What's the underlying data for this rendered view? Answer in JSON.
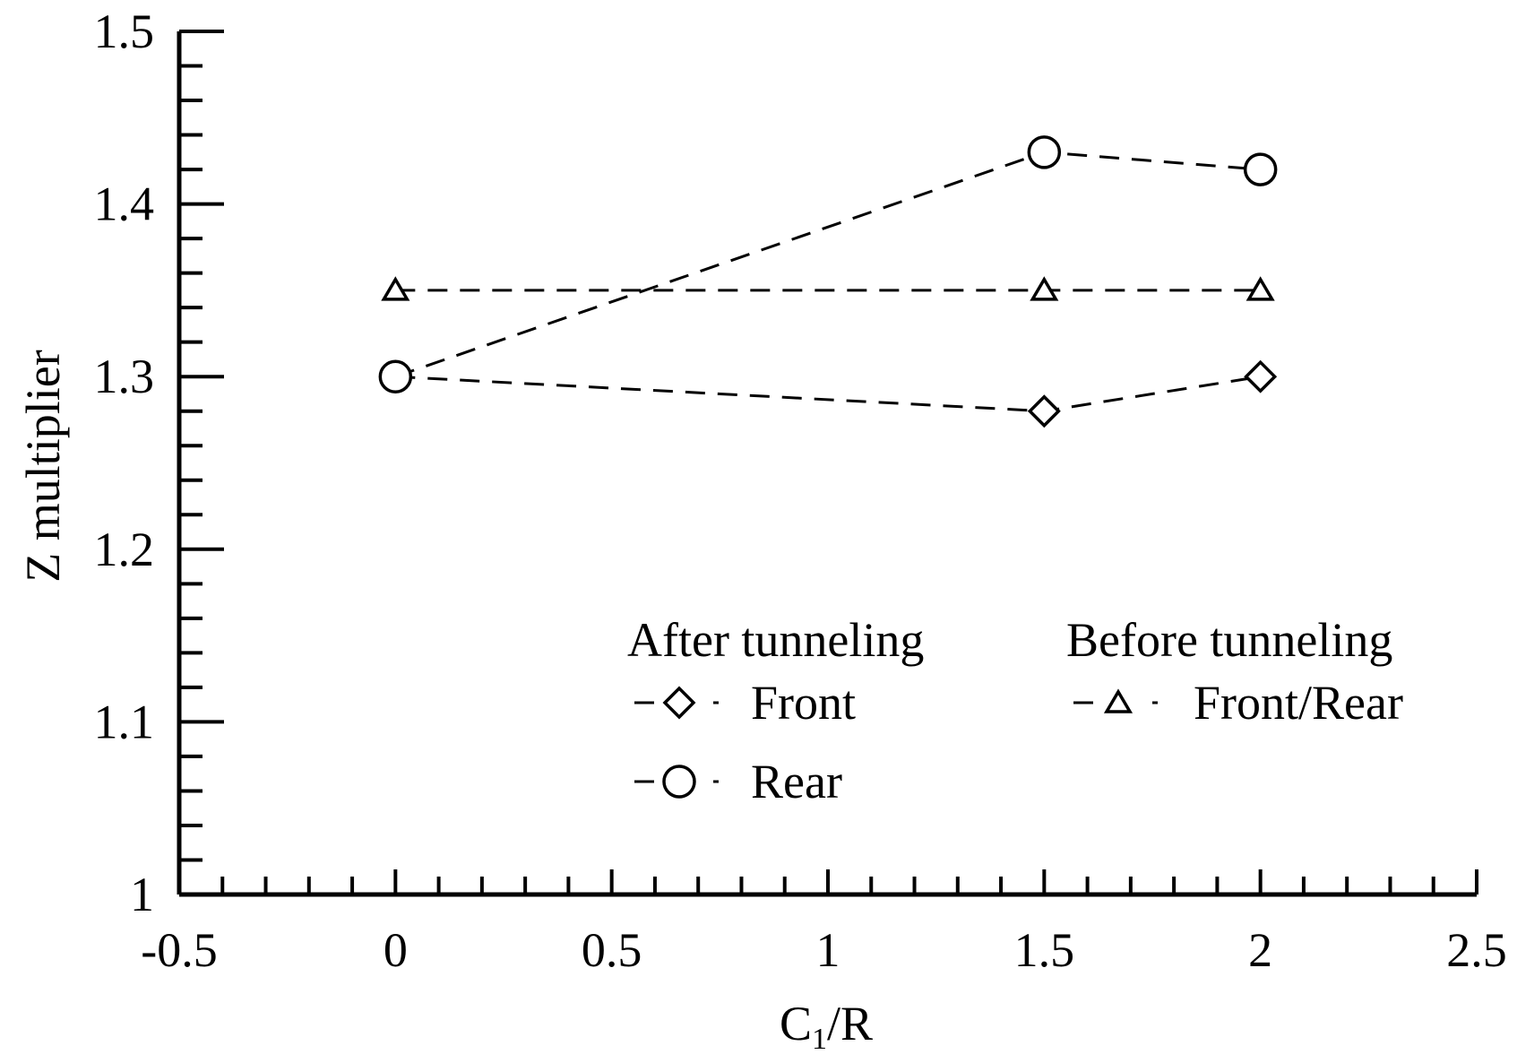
{
  "chart_data": {
    "type": "line",
    "xlabel_main": "C",
    "xlabel_sub": "1",
    "xlabel_tail": "/R",
    "ylabel": "Z multiplier",
    "xlim": [
      -0.5,
      2.5
    ],
    "ylim": [
      1.0,
      1.5
    ],
    "x_ticks": [
      -0.5,
      0,
      0.5,
      1,
      1.5,
      2,
      2.5
    ],
    "x_tick_labels": [
      "-0.5",
      "0",
      "0.5",
      "1",
      "1.5",
      "2",
      "2.5"
    ],
    "y_ticks": [
      1.0,
      1.1,
      1.2,
      1.3,
      1.4,
      1.5
    ],
    "y_tick_labels": [
      "1",
      "1.1",
      "1.2",
      "1.3",
      "1.4",
      "1.5"
    ],
    "x_minor_step": 0.1,
    "y_minor_step": 0.02,
    "grid": false,
    "legend_position": "bottom-right",
    "legend_groups": [
      {
        "title": "After tunneling",
        "entries": [
          "front",
          "rear"
        ]
      },
      {
        "title": "Before tunneling",
        "entries": [
          "front_rear"
        ]
      }
    ],
    "series": [
      {
        "id": "front",
        "name": "Front",
        "group": "After tunneling",
        "marker": "diamond",
        "line": "dashed",
        "color": "#000000",
        "x": [
          0,
          1.5,
          2
        ],
        "y": [
          1.3,
          1.28,
          1.3
        ]
      },
      {
        "id": "rear",
        "name": "Rear",
        "group": "After tunneling",
        "marker": "circle",
        "line": "dashed",
        "color": "#000000",
        "x": [
          0,
          1.5,
          2
        ],
        "y": [
          1.3,
          1.43,
          1.42
        ]
      },
      {
        "id": "front_rear",
        "name": "Front/Rear",
        "group": "Before tunneling",
        "marker": "triangle",
        "line": "dashed",
        "color": "#000000",
        "x": [
          0,
          1.5,
          2
        ],
        "y": [
          1.35,
          1.35,
          1.35
        ]
      }
    ]
  }
}
